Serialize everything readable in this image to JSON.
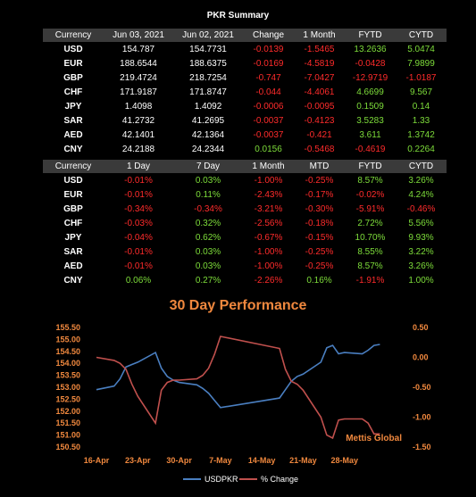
{
  "title": "PKR Summary",
  "summary": {
    "headers": [
      "Currency",
      "Jun 03, 2021",
      "Jun 02, 2021",
      "Change",
      "1 Month",
      "FYTD",
      "CYTD"
    ],
    "rows": [
      [
        "USD",
        "154.787",
        "154.7731",
        "-0.0139",
        "-1.5465",
        "13.2636",
        "5.0474"
      ],
      [
        "EUR",
        "188.6544",
        "188.6375",
        "-0.0169",
        "-4.5819",
        "-0.0428",
        "7.9899"
      ],
      [
        "GBP",
        "219.4724",
        "218.7254",
        "-0.747",
        "-7.0427",
        "-12.9719",
        "-1.0187"
      ],
      [
        "CHF",
        "171.9187",
        "171.8747",
        "-0.044",
        "-4.4061",
        "4.6699",
        "9.567"
      ],
      [
        "JPY",
        "1.4098",
        "1.4092",
        "-0.0006",
        "-0.0095",
        "0.1509",
        "0.14"
      ],
      [
        "SAR",
        "41.2732",
        "41.2695",
        "-0.0037",
        "-0.4123",
        "3.5283",
        "1.33"
      ],
      [
        "AED",
        "42.1401",
        "42.1364",
        "-0.0037",
        "-0.421",
        "3.611",
        "1.3742"
      ],
      [
        "CNY",
        "24.2188",
        "24.2344",
        "0.0156",
        "-0.5468",
        "-0.4619",
        "0.2264"
      ]
    ]
  },
  "performance": {
    "headers": [
      "Currency",
      "1 Day",
      "7 Day",
      "1 Month",
      "MTD",
      "FYTD",
      "CYTD"
    ],
    "rows": [
      [
        "USD",
        "-0.01%",
        "0.03%",
        "-1.00%",
        "-0.25%",
        "8.57%",
        "3.26%"
      ],
      [
        "EUR",
        "-0.01%",
        "0.11%",
        "-2.43%",
        "-0.17%",
        "-0.02%",
        "4.24%"
      ],
      [
        "GBP",
        "-0.34%",
        "-0.34%",
        "-3.21%",
        "-0.30%",
        "-5.91%",
        "-0.46%"
      ],
      [
        "CHF",
        "-0.03%",
        "0.32%",
        "-2.56%",
        "-0.18%",
        "2.72%",
        "5.56%"
      ],
      [
        "JPY",
        "-0.04%",
        "0.62%",
        "-0.67%",
        "-0.15%",
        "10.70%",
        "9.93%"
      ],
      [
        "SAR",
        "-0.01%",
        "0.03%",
        "-1.00%",
        "-0.25%",
        "8.55%",
        "3.22%"
      ],
      [
        "AED",
        "-0.01%",
        "0.03%",
        "-1.00%",
        "-0.25%",
        "8.57%",
        "3.26%"
      ],
      [
        "CNY",
        "0.06%",
        "0.27%",
        "-2.26%",
        "0.16%",
        "-1.91%",
        "1.00%"
      ]
    ]
  },
  "colors": {
    "background": "#000000",
    "header_bg": "#3a3a3a",
    "negative": "#ff2b2b",
    "positive": "#7ddc3a",
    "title_orange": "#f0883e",
    "usdpkr_line": "#4a7fc1",
    "pct_change_line": "#c0504d"
  },
  "chart_data": {
    "type": "line",
    "title": "30 Day Performance",
    "watermark": "Mettis Global",
    "x_tick_labels": [
      "16-Apr",
      "23-Apr",
      "30-Apr",
      "7-May",
      "14-May",
      "21-May",
      "28-May"
    ],
    "x_tick_dates": [
      "2021-04-16",
      "2021-04-23",
      "2021-04-30",
      "2021-05-07",
      "2021-05-14",
      "2021-05-21",
      "2021-05-28"
    ],
    "y_left": {
      "lim": [
        150.5,
        155.5
      ],
      "ticks": [
        "150.50",
        "151.00",
        "151.50",
        "152.00",
        "152.50",
        "153.00",
        "153.50",
        "154.00",
        "154.50",
        "155.00",
        "155.50"
      ]
    },
    "y_right": {
      "lim": [
        -1.5,
        0.5
      ],
      "ticks": [
        "0.50",
        "0.00",
        "-0.50",
        "-1.00",
        "-1.50"
      ]
    },
    "legend_position": "bottom",
    "series": [
      {
        "name": "USDPKR",
        "axis": "left",
        "x": [
          "2021-04-16",
          "2021-04-19",
          "2021-04-20",
          "2021-04-21",
          "2021-04-22",
          "2021-04-23",
          "2021-04-26",
          "2021-04-27",
          "2021-04-28",
          "2021-04-29",
          "2021-04-30",
          "2021-05-03",
          "2021-05-04",
          "2021-05-05",
          "2021-05-06",
          "2021-05-07",
          "2021-05-17",
          "2021-05-18",
          "2021-05-19",
          "2021-05-20",
          "2021-05-21",
          "2021-05-24",
          "2021-05-25",
          "2021-05-26",
          "2021-05-27",
          "2021-05-28",
          "2021-05-31",
          "2021-06-01",
          "2021-06-02",
          "2021-06-03"
        ],
        "values": [
          152.9,
          153.05,
          153.35,
          153.85,
          153.95,
          154.05,
          154.45,
          153.8,
          153.45,
          153.3,
          153.2,
          153.1,
          152.95,
          152.75,
          152.45,
          152.15,
          152.55,
          152.9,
          153.25,
          153.45,
          153.55,
          154.05,
          154.65,
          154.75,
          154.4,
          154.45,
          154.4,
          154.55,
          154.75,
          154.79
        ]
      },
      {
        "name": "% Change",
        "axis": "right",
        "x": [
          "2021-04-16",
          "2021-04-19",
          "2021-04-20",
          "2021-04-21",
          "2021-04-22",
          "2021-04-23",
          "2021-04-26",
          "2021-04-27",
          "2021-04-28",
          "2021-04-29",
          "2021-04-30",
          "2021-05-03",
          "2021-05-04",
          "2021-05-05",
          "2021-05-06",
          "2021-05-07",
          "2021-05-17",
          "2021-05-18",
          "2021-05-19",
          "2021-05-20",
          "2021-05-21",
          "2021-05-24",
          "2021-05-25",
          "2021-05-26",
          "2021-05-27",
          "2021-05-28",
          "2021-05-31",
          "2021-06-01",
          "2021-06-02",
          "2021-06-03"
        ],
        "values": [
          0.0,
          -0.05,
          -0.1,
          -0.2,
          -0.45,
          -0.65,
          -1.1,
          -0.55,
          -0.42,
          -0.38,
          -0.38,
          -0.36,
          -0.3,
          -0.18,
          0.05,
          0.35,
          0.15,
          -0.2,
          -0.4,
          -0.45,
          -0.55,
          -1.0,
          -1.3,
          -1.35,
          -1.05,
          -1.03,
          -1.03,
          -1.1,
          -1.28,
          -1.28
        ]
      }
    ]
  }
}
